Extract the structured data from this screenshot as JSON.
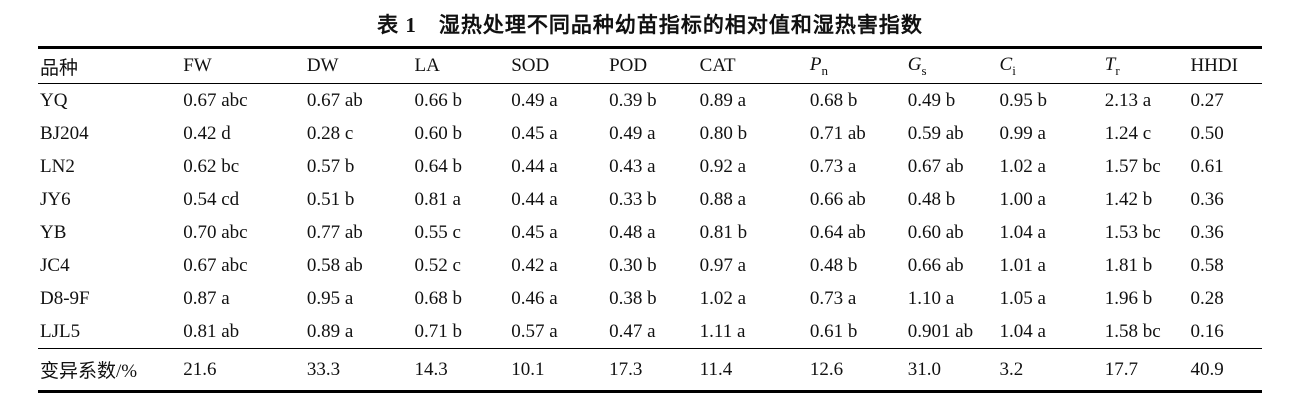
{
  "title": "表 1　湿热处理不同品种幼苗指标的相对值和湿热害指数",
  "table": {
    "columns": [
      {
        "label": "品种",
        "italic": false,
        "sub": ""
      },
      {
        "label": "FW",
        "italic": false,
        "sub": ""
      },
      {
        "label": "DW",
        "italic": false,
        "sub": ""
      },
      {
        "label": "LA",
        "italic": false,
        "sub": ""
      },
      {
        "label": "SOD",
        "italic": false,
        "sub": ""
      },
      {
        "label": "POD",
        "italic": false,
        "sub": ""
      },
      {
        "label": "CAT",
        "italic": false,
        "sub": ""
      },
      {
        "label": "P",
        "italic": true,
        "sub": "n"
      },
      {
        "label": "G",
        "italic": true,
        "sub": "s"
      },
      {
        "label": "C",
        "italic": true,
        "sub": "i"
      },
      {
        "label": "T",
        "italic": true,
        "sub": "r"
      },
      {
        "label": "HHDI",
        "italic": false,
        "sub": ""
      }
    ],
    "rows": [
      [
        "YQ",
        "0.67 abc",
        "0.67 ab",
        "0.66 b",
        "0.49 a",
        "0.39 b",
        "0.89 a",
        "0.68 b",
        "0.49 b",
        "0.95 b",
        "2.13 a",
        "0.27"
      ],
      [
        "BJ204",
        "0.42 d",
        "0.28 c",
        "0.60 b",
        "0.45 a",
        "0.49 a",
        "0.80 b",
        "0.71 ab",
        "0.59 ab",
        "0.99 a",
        "1.24 c",
        "0.50"
      ],
      [
        "LN2",
        "0.62 bc",
        "0.57 b",
        "0.64 b",
        "0.44 a",
        "0.43 a",
        "0.92 a",
        "0.73 a",
        "0.67 ab",
        "1.02 a",
        "1.57 bc",
        "0.61"
      ],
      [
        "JY6",
        "0.54 cd",
        "0.51 b",
        "0.81 a",
        "0.44 a",
        "0.33 b",
        "0.88 a",
        "0.66 ab",
        "0.48 b",
        "1.00 a",
        "1.42 b",
        "0.36"
      ],
      [
        "YB",
        "0.70 abc",
        "0.77 ab",
        "0.55 c",
        "0.45 a",
        "0.48 a",
        "0.81 b",
        "0.64 ab",
        "0.60 ab",
        "1.04 a",
        "1.53 bc",
        "0.36"
      ],
      [
        "JC4",
        "0.67 abc",
        "0.58 ab",
        "0.52 c",
        "0.42 a",
        "0.30 b",
        "0.97 a",
        "0.48 b",
        "0.66 ab",
        "1.01 a",
        "1.81 b",
        "0.58"
      ],
      [
        "D8-9F",
        "0.87 a",
        "0.95 a",
        "0.68 b",
        "0.46 a",
        "0.38 b",
        "1.02 a",
        "0.73 a",
        "1.10 a",
        "1.05 a",
        "1.96 b",
        "0.28"
      ],
      [
        "LJL5",
        "0.81 ab",
        "0.89 a",
        "0.71 b",
        "0.57 a",
        "0.47 a",
        "1.11 a",
        "0.61 b",
        "0.901 ab",
        "1.04 a",
        "1.58 bc",
        "0.16"
      ]
    ],
    "footer_row": [
      "变异系数/%",
      "21.6",
      "33.3",
      "14.3",
      "10.1",
      "17.3",
      "11.4",
      "12.6",
      "31.0",
      "3.2",
      "17.7",
      "40.9"
    ]
  },
  "chart_data": {
    "type": "table",
    "title": "表 1　湿热处理不同品种幼苗指标的相对值和湿热害指数",
    "columns": [
      "品种",
      "FW",
      "DW",
      "LA",
      "SOD",
      "POD",
      "CAT",
      "Pn",
      "Gs",
      "Ci",
      "Tr",
      "HHDI"
    ],
    "rows": [
      [
        "YQ",
        "0.67 abc",
        "0.67 ab",
        "0.66 b",
        "0.49 a",
        "0.39 b",
        "0.89 a",
        "0.68 b",
        "0.49 b",
        "0.95 b",
        "2.13 a",
        "0.27"
      ],
      [
        "BJ204",
        "0.42 d",
        "0.28 c",
        "0.60 b",
        "0.45 a",
        "0.49 a",
        "0.80 b",
        "0.71 ab",
        "0.59 ab",
        "0.99 a",
        "1.24 c",
        "0.50"
      ],
      [
        "LN2",
        "0.62 bc",
        "0.57 b",
        "0.64 b",
        "0.44 a",
        "0.43 a",
        "0.92 a",
        "0.73 a",
        "0.67 ab",
        "1.02 a",
        "1.57 bc",
        "0.61"
      ],
      [
        "JY6",
        "0.54 cd",
        "0.51 b",
        "0.81 a",
        "0.44 a",
        "0.33 b",
        "0.88 a",
        "0.66 ab",
        "0.48 b",
        "1.00 a",
        "1.42 b",
        "0.36"
      ],
      [
        "YB",
        "0.70 abc",
        "0.77 ab",
        "0.55 c",
        "0.45 a",
        "0.48 a",
        "0.81 b",
        "0.64 ab",
        "0.60 ab",
        "1.04 a",
        "1.53 bc",
        "0.36"
      ],
      [
        "JC4",
        "0.67 abc",
        "0.58 ab",
        "0.52 c",
        "0.42 a",
        "0.30 b",
        "0.97 a",
        "0.48 b",
        "0.66 ab",
        "1.01 a",
        "1.81 b",
        "0.58"
      ],
      [
        "D8-9F",
        "0.87 a",
        "0.95 a",
        "0.68 b",
        "0.46 a",
        "0.38 b",
        "1.02 a",
        "0.73 a",
        "1.10 a",
        "1.05 a",
        "1.96 b",
        "0.28"
      ],
      [
        "LJL5",
        "0.81 ab",
        "0.89 a",
        "0.71 b",
        "0.57 a",
        "0.47 a",
        "1.11 a",
        "0.61 b",
        "0.901 ab",
        "1.04 a",
        "1.58 bc",
        "0.16"
      ],
      [
        "变异系数/%",
        "21.6",
        "33.3",
        "14.3",
        "10.1",
        "17.3",
        "11.4",
        "12.6",
        "31.0",
        "3.2",
        "17.7",
        "40.9"
      ]
    ]
  }
}
